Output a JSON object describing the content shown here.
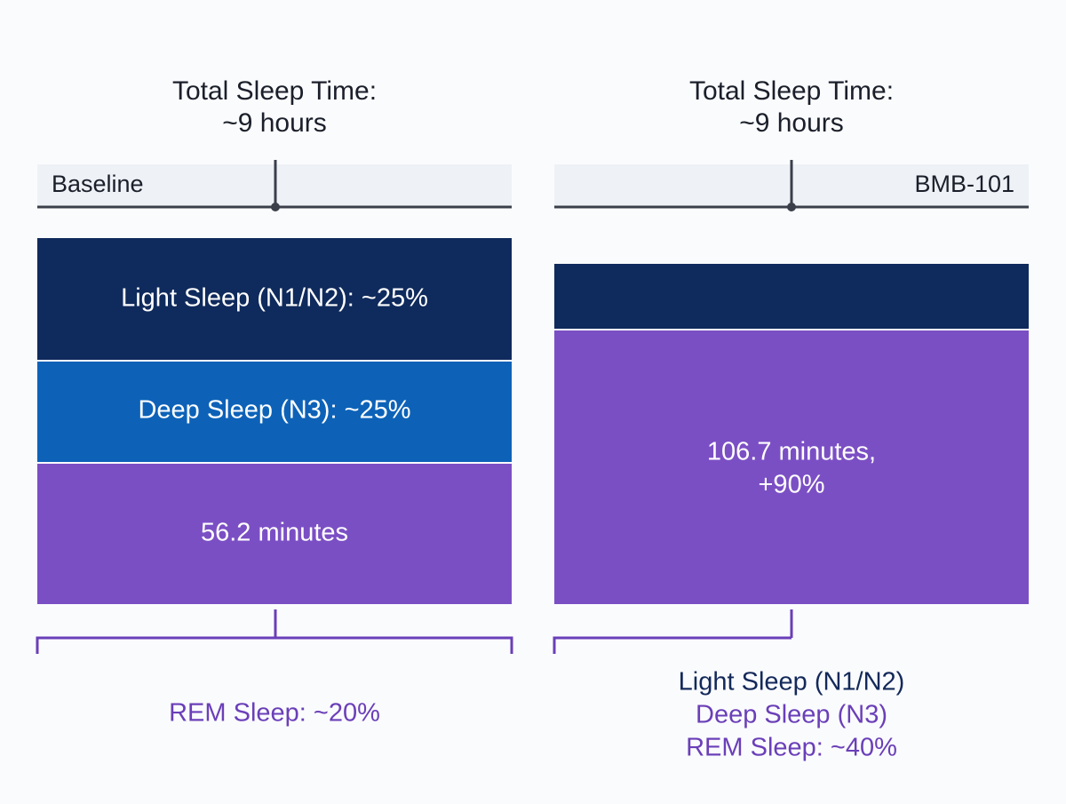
{
  "panels": [
    {
      "title": [
        "Total Sleep Time:",
        "~9 hours"
      ],
      "label": "Baseline",
      "segments": [
        "Light Sleep (N1/N2): ~25%",
        "Deep Sleep (N3): ~25%",
        "56.2 minutes"
      ],
      "caption": [
        "REM Sleep: ~20%"
      ]
    },
    {
      "title": [
        "Total Sleep Time:",
        "~9 hours"
      ],
      "label": "BMB-101",
      "segments": [
        "106.7 minutes,",
        "+90%"
      ],
      "caption": [
        "Light Sleep (N1/N2)",
        "Deep Sleep (N3)",
        "REM Sleep: ~40%"
      ]
    }
  ]
}
